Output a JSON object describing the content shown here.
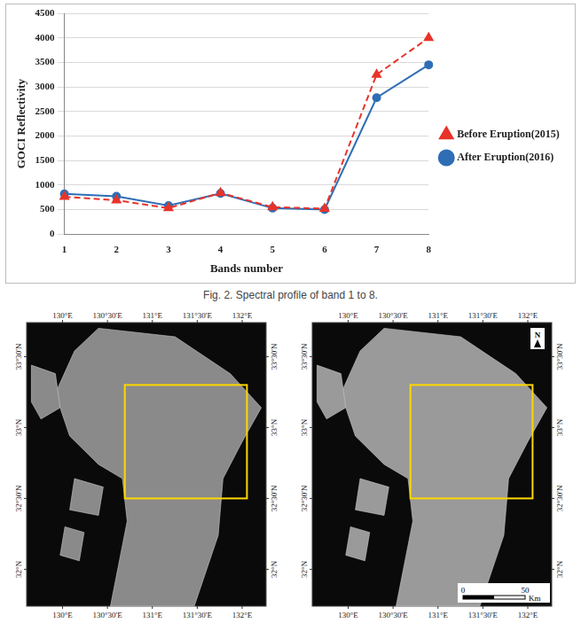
{
  "chart_data": {
    "type": "line",
    "categories": [
      "1",
      "2",
      "3",
      "4",
      "5",
      "6",
      "7",
      "8"
    ],
    "x_label": "Bands number",
    "y_label": "GOCI Reflectivity",
    "series": [
      {
        "name": "Before Eruption(2015)",
        "color": "#e8332a",
        "marker": "triangle",
        "line_style": "dashed",
        "values": [
          760,
          690,
          530,
          840,
          550,
          520,
          3250,
          4000
        ]
      },
      {
        "name": "After Eruption(2016)",
        "color": "#2f6eb5",
        "marker": "circle",
        "line_style": "solid",
        "values": [
          820,
          770,
          580,
          830,
          530,
          500,
          2780,
          3450
        ]
      }
    ],
    "ylim": [
      0,
      4500
    ],
    "yticks": [
      0,
      500,
      1000,
      1500,
      2000,
      2500,
      3000,
      3500,
      4000,
      4500
    ],
    "grid": true,
    "legend": "right"
  },
  "caption": "Fig. 2. Spectral profile of band 1 to 8.",
  "maps": {
    "lon_labels": [
      "130°E",
      "130°30'E",
      "131°E",
      "131°30'E",
      "132°E"
    ],
    "lat_labels": [
      "33°30'N",
      "33°N",
      "32°30'N",
      "32°N"
    ],
    "north": "N",
    "scale": {
      "values": [
        0,
        50
      ],
      "unit": "Km"
    }
  }
}
